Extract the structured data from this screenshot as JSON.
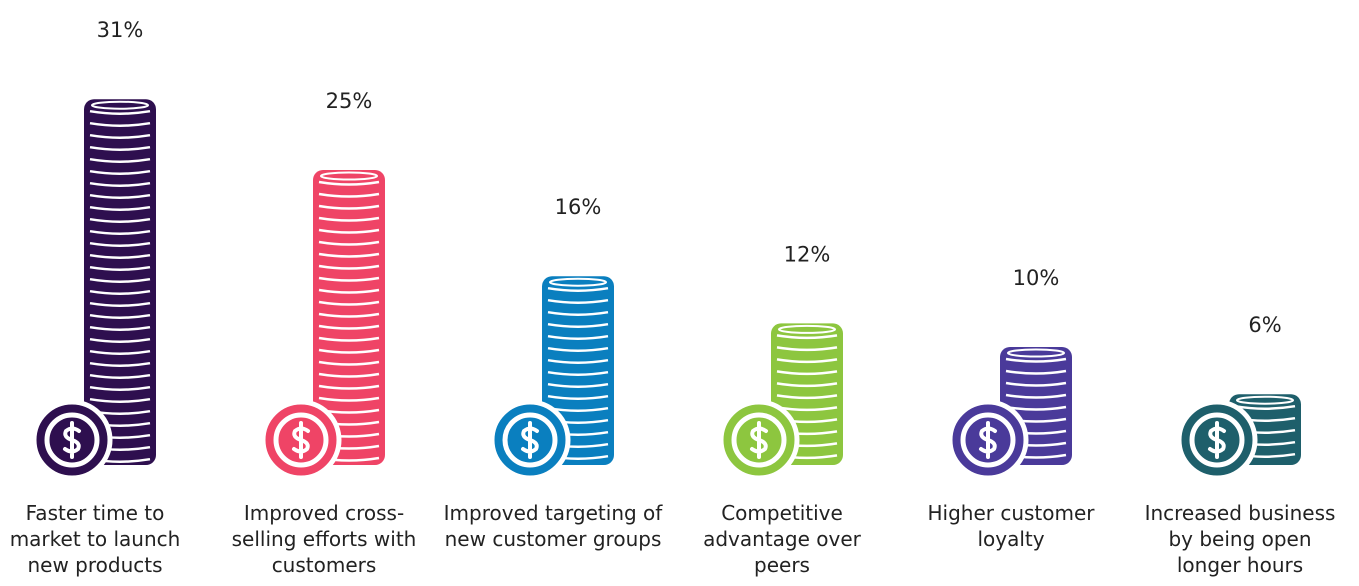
{
  "chart_data": {
    "type": "pictorial-bar",
    "categories": [
      "Faster time to market to launch new products",
      "Improved cross-selling efforts with customers",
      "Improved targeting of new customer groups",
      "Competitive advantage over peers",
      "Higher customer loyalty",
      "Increased business by being open longer hours"
    ],
    "values": [
      31,
      25,
      16,
      12,
      10,
      6
    ],
    "value_labels": [
      "31%",
      "25%",
      "16%",
      "12%",
      "10%",
      "6%"
    ],
    "colors": [
      "#2e0f4f",
      "#ef4466",
      "#0a7fbf",
      "#8dc63f",
      "#4a3a9a",
      "#1e5f6b"
    ]
  }
}
